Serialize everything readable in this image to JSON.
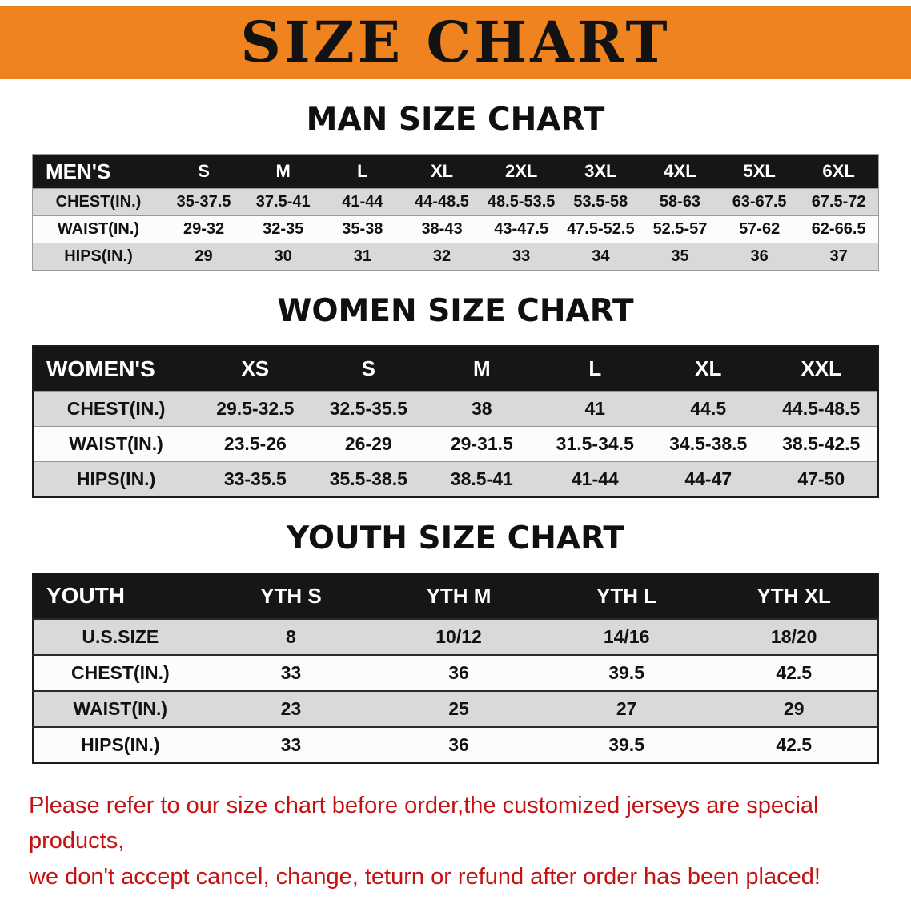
{
  "banner": {
    "title": "SIZE CHART"
  },
  "colors": {
    "banner_orange": "#EF8320",
    "table_header_black": "#161616",
    "row_gray": "#D9D9D9",
    "footer_red": "#C41111"
  },
  "sections": [
    {
      "heading": "MAN SIZE CHART",
      "table": {
        "header": [
          "MEN'S",
          "S",
          "M",
          "L",
          "XL",
          "2XL",
          "3XL",
          "4XL",
          "5XL",
          "6XL"
        ],
        "rows": [
          {
            "label": "CHEST(IN.)",
            "values": [
              "35-37.5",
              "37.5-41",
              "41-44",
              "44-48.5",
              "48.5-53.5",
              "53.5-58",
              "58-63",
              "63-67.5",
              "67.5-72"
            ]
          },
          {
            "label": "WAIST(IN.)",
            "values": [
              "29-32",
              "32-35",
              "35-38",
              "38-43",
              "43-47.5",
              "47.5-52.5",
              "52.5-57",
              "57-62",
              "62-66.5"
            ]
          },
          {
            "label": "HIPS(IN.)",
            "values": [
              "29",
              "30",
              "31",
              "32",
              "33",
              "34",
              "35",
              "36",
              "37"
            ]
          }
        ]
      }
    },
    {
      "heading": "WOMEN SIZE CHART",
      "table": {
        "header": [
          "WOMEN'S",
          "XS",
          "S",
          "M",
          "L",
          "XL",
          "XXL"
        ],
        "rows": [
          {
            "label": "CHEST(IN.)",
            "values": [
              "29.5-32.5",
              "32.5-35.5",
              "38",
              "41",
              "44.5",
              "44.5-48.5"
            ]
          },
          {
            "label": "WAIST(IN.)",
            "values": [
              "23.5-26",
              "26-29",
              "29-31.5",
              "31.5-34.5",
              "34.5-38.5",
              "38.5-42.5"
            ]
          },
          {
            "label": "HIPS(IN.)",
            "values": [
              "33-35.5",
              "35.5-38.5",
              "38.5-41",
              "41-44",
              "44-47",
              "47-50"
            ]
          }
        ]
      }
    },
    {
      "heading": "YOUTH SIZE CHART",
      "table": {
        "header": [
          "YOUTH",
          "YTH S",
          "YTH M",
          "YTH L",
          "YTH XL"
        ],
        "rows": [
          {
            "label": "U.S.SIZE",
            "values": [
              "8",
              "10/12",
              "14/16",
              "18/20"
            ]
          },
          {
            "label": "CHEST(IN.)",
            "values": [
              "33",
              "36",
              "39.5",
              "42.5"
            ]
          },
          {
            "label": "WAIST(IN.)",
            "values": [
              "23",
              "25",
              "27",
              "29"
            ]
          },
          {
            "label": "HIPS(IN.)",
            "values": [
              "33",
              "36",
              "39.5",
              "42.5"
            ]
          }
        ]
      }
    }
  ],
  "footer": {
    "line1": "Please refer to our size chart before order,the customized jerseys are special products,",
    "line2": "we don't accept cancel, change, teturn or refund after order has been placed!"
  }
}
